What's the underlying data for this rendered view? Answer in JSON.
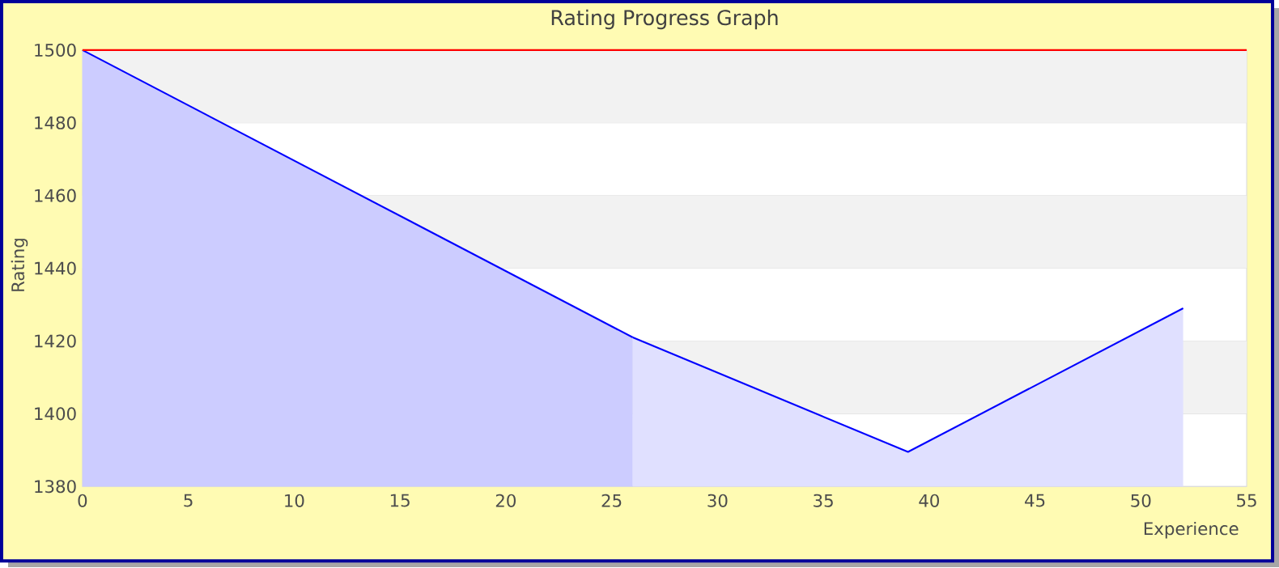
{
  "chart_data": {
    "type": "area",
    "title": "Rating Progress Graph",
    "xlabel": "Experience",
    "ylabel": "Rating",
    "series": [
      {
        "x": [
          0,
          26
        ],
        "values": [
          1500,
          1421
        ],
        "color": "#ccccff"
      },
      {
        "x": [
          26,
          39,
          52
        ],
        "values": [
          1421,
          1389.5,
          1429
        ],
        "color": "#e0e0ff"
      }
    ],
    "xlim": [
      0,
      55
    ],
    "ylim": [
      1380,
      1500
    ],
    "xticks": [
      0,
      5,
      10,
      15,
      20,
      25,
      30,
      35,
      40,
      45,
      50,
      55
    ],
    "yticks": [
      1380,
      1400,
      1420,
      1440,
      1460,
      1480,
      1500
    ],
    "ref_lines": [
      {
        "axis": "y",
        "value": 1500,
        "color": "#ff0000"
      }
    ],
    "grid": "y"
  }
}
